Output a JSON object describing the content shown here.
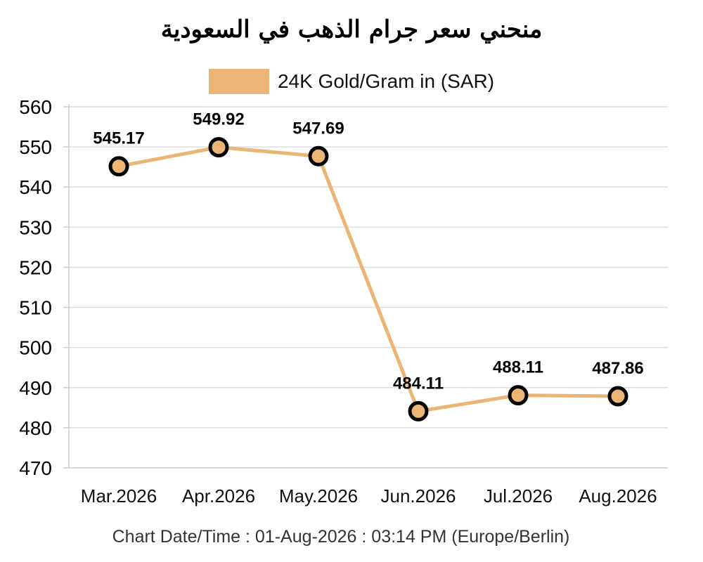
{
  "chart_data": {
    "type": "line",
    "title": "منحني سعر جرام الذهب في السعودية",
    "categories": [
      "Mar.2026",
      "Apr.2026",
      "May.2026",
      "Jun.2026",
      "Jul.2026",
      "Aug.2026"
    ],
    "series": [
      {
        "name": "24K Gold/Gram in (SAR)",
        "values": [
          545.17,
          549.92,
          547.69,
          484.11,
          488.11,
          487.86
        ],
        "color": "#EAB575",
        "marker_edge_color": "#000000"
      }
    ],
    "ylim": [
      470,
      560
    ],
    "yticks": [
      470,
      480,
      490,
      500,
      510,
      520,
      530,
      540,
      550,
      560
    ],
    "grid": true,
    "legend_position": "top-center",
    "xlabel": "",
    "ylabel": ""
  },
  "footer": "Chart Date/Time : 01-Aug-2026 : 03:14 PM (Europe/Berlin)"
}
